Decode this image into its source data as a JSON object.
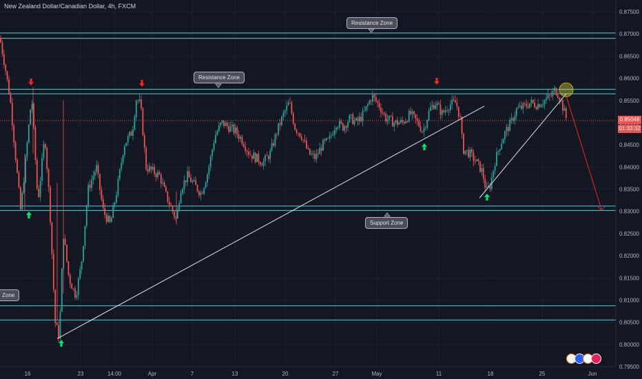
{
  "header": {
    "title": "New Zealand Dollar/Canadian Dollar, 4h, FXCM"
  },
  "price_badge": {
    "price": "0.85048",
    "countdown": "01:33:32"
  },
  "colors": {
    "background": "#131722",
    "up": "#26a69a",
    "down": "#ef5350",
    "zone_line": "#4dd0e1",
    "up_arrow": "#00e676",
    "down_arrow": "#ff1f1f",
    "price_line": "#ef5350"
  },
  "chart_data": {
    "type": "candlestick",
    "symbol": "NZDCAD",
    "timeframe": "4h",
    "source": "FXCM",
    "ylim": [
      0.7955,
      0.8795
    ],
    "y_ticks": [
      "0.87500",
      "0.87000",
      "0.86500",
      "0.86000",
      "0.85500",
      "0.85000",
      "0.84500",
      "0.84000",
      "0.83500",
      "0.83000",
      "0.82500",
      "0.82000",
      "0.81500",
      "0.81000",
      "0.80500",
      "0.80000",
      "0.79500"
    ],
    "x_ticks": [
      "16",
      "23",
      "14:00",
      "Apr",
      "7",
      "13",
      "20",
      "27",
      "May",
      "11",
      "18",
      "25",
      "Jun"
    ],
    "horizontal_levels": [
      0.8702,
      0.869,
      0.8575,
      0.8565,
      0.8312,
      0.8302,
      0.8087,
      0.8055
    ],
    "annotations": [
      {
        "text": "Resistance Zone",
        "level": 0.8702
      },
      {
        "text": "Resistance Zone",
        "level": 0.8575
      },
      {
        "text": "Support Zone",
        "level": 0.8302
      },
      {
        "text": "Zone",
        "level": 0.8125
      }
    ],
    "trendlines": [
      {
        "from": [
          "19 Mar",
          0.8013
        ],
        "to": [
          "14 May",
          0.8537
        ]
      },
      {
        "from": [
          "16 May",
          0.833
        ],
        "to": [
          "27 May",
          0.8565
        ]
      }
    ],
    "projection": {
      "from": [
        "27 May",
        0.8565
      ],
      "to": [
        "31 May",
        0.8305
      ]
    },
    "current_price": 0.85048,
    "path": [
      [
        0,
        0.869
      ],
      [
        8,
        0.862
      ],
      [
        15,
        0.855
      ],
      [
        30,
        0.83
      ],
      [
        46,
        0.856
      ],
      [
        55,
        0.832
      ],
      [
        65,
        0.847
      ],
      [
        72,
        0.832
      ],
      [
        80,
        0.805
      ],
      [
        86,
        0.8015
      ],
      [
        92,
        0.825
      ],
      [
        100,
        0.815
      ],
      [
        110,
        0.811
      ],
      [
        118,
        0.818
      ],
      [
        128,
        0.835
      ],
      [
        140,
        0.84
      ],
      [
        150,
        0.83
      ],
      [
        160,
        0.827
      ],
      [
        170,
        0.835
      ],
      [
        180,
        0.845
      ],
      [
        192,
        0.848
      ],
      [
        198,
        0.8555
      ],
      [
        204,
        0.854
      ],
      [
        212,
        0.84
      ],
      [
        222,
        0.839
      ],
      [
        232,
        0.838
      ],
      [
        240,
        0.834
      ],
      [
        248,
        0.831
      ],
      [
        256,
        0.828
      ],
      [
        262,
        0.835
      ],
      [
        272,
        0.838
      ],
      [
        282,
        0.836
      ],
      [
        292,
        0.834
      ],
      [
        302,
        0.839
      ],
      [
        312,
        0.847
      ],
      [
        322,
        0.85
      ],
      [
        332,
        0.849
      ],
      [
        342,
        0.848
      ],
      [
        352,
        0.846
      ],
      [
        362,
        0.843
      ],
      [
        372,
        0.842
      ],
      [
        382,
        0.841
      ],
      [
        392,
        0.843
      ],
      [
        402,
        0.848
      ],
      [
        412,
        0.852
      ],
      [
        420,
        0.8545
      ],
      [
        428,
        0.849
      ],
      [
        438,
        0.847
      ],
      [
        448,
        0.843
      ],
      [
        458,
        0.842
      ],
      [
        468,
        0.845
      ],
      [
        478,
        0.846
      ],
      [
        488,
        0.85
      ],
      [
        498,
        0.849
      ],
      [
        508,
        0.851
      ],
      [
        518,
        0.85
      ],
      [
        528,
        0.852
      ],
      [
        540,
        0.856
      ],
      [
        550,
        0.854
      ],
      [
        560,
        0.851
      ],
      [
        572,
        0.85
      ],
      [
        584,
        0.85
      ],
      [
        596,
        0.852
      ],
      [
        606,
        0.85
      ],
      [
        614,
        0.848
      ],
      [
        624,
        0.853
      ],
      [
        632,
        0.8545
      ],
      [
        642,
        0.852
      ],
      [
        652,
        0.854
      ],
      [
        662,
        0.8545
      ],
      [
        668,
        0.851
      ],
      [
        672,
        0.844
      ],
      [
        682,
        0.843
      ],
      [
        692,
        0.841
      ],
      [
        700,
        0.839
      ],
      [
        706,
        0.8345
      ],
      [
        712,
        0.836
      ],
      [
        718,
        0.841
      ],
      [
        726,
        0.845
      ],
      [
        734,
        0.848
      ],
      [
        742,
        0.85
      ],
      [
        750,
        0.853
      ],
      [
        760,
        0.8535
      ],
      [
        770,
        0.8545
      ],
      [
        780,
        0.854
      ],
      [
        790,
        0.855
      ],
      [
        800,
        0.856
      ],
      [
        806,
        0.8575
      ],
      [
        812,
        0.856
      ],
      [
        818,
        0.853
      ],
      [
        823,
        0.8505
      ]
    ]
  }
}
